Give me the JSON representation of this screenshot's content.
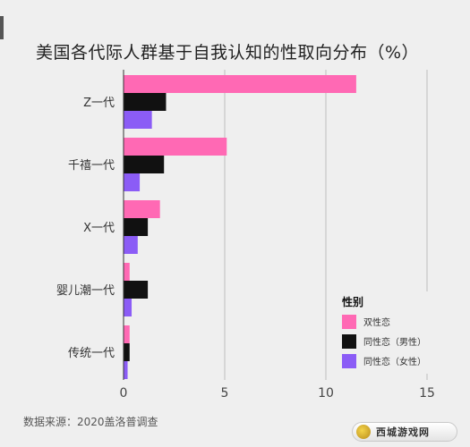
{
  "chart_data": {
    "type": "bar",
    "orientation": "horizontal",
    "title": "美国各代际人群基于自我认知的性取向分布（%）",
    "categories": [
      "Z一代",
      "千禧一代",
      "X一代",
      "婴儿潮一代",
      "传统一代"
    ],
    "series": [
      {
        "name": "双性恋",
        "color": "#ff69b4",
        "values": [
          11.5,
          5.1,
          1.8,
          0.3,
          0.3
        ]
      },
      {
        "name": "同性恋（男性）",
        "color": "#111111",
        "values": [
          2.1,
          2.0,
          1.2,
          1.2,
          0.3
        ]
      },
      {
        "name": "同性恋（女性）",
        "color": "#8b5cf6",
        "values": [
          1.4,
          0.8,
          0.7,
          0.4,
          0.2
        ]
      }
    ],
    "xlim": [
      0,
      15
    ],
    "xticks": [
      0,
      5,
      10,
      15
    ],
    "legend": {
      "title": "性别",
      "placement": "bottom-right"
    },
    "grid": "vertical"
  },
  "source": "数据来源：2020盖洛普调查",
  "watermark": "西城游戏网"
}
